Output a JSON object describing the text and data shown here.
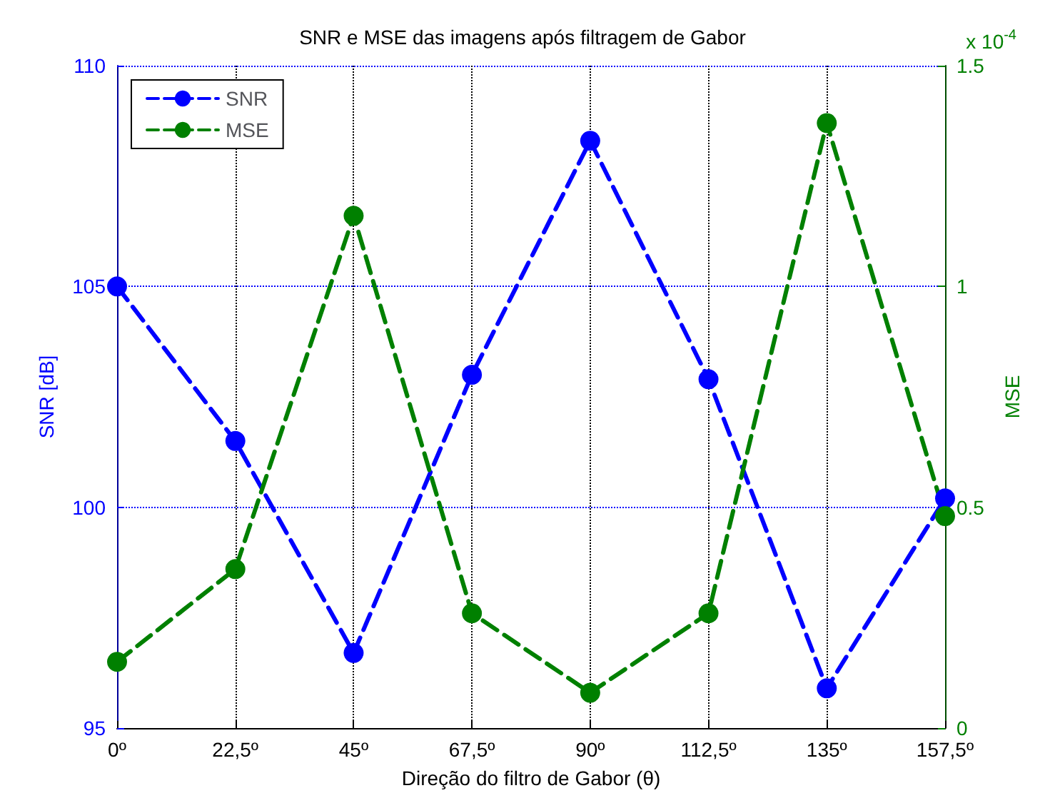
{
  "chart_data": {
    "type": "line",
    "title": "SNR e MSE das imagens após filtragem de Gabor",
    "xlabel": "Direção do filtro de Gabor (θ)",
    "ylabel": "SNR [dB]",
    "y2label": "MSE",
    "categories": [
      "0º",
      "22,5º",
      "45º",
      "67,5º",
      "90º",
      "112,5º",
      "135º",
      "157,5º"
    ],
    "series": [
      {
        "name": "SNR",
        "color": "#0000ff",
        "values": [
          105,
          101.5,
          96.7,
          103,
          108.3,
          102.9,
          95.9,
          100.2
        ]
      },
      {
        "name": "MSE",
        "color": "#008000",
        "axis": "y2",
        "values": [
          0.15,
          0.36,
          1.16,
          0.26,
          0.08,
          0.26,
          1.37,
          0.48
        ]
      }
    ],
    "ylim": [
      95,
      110
    ],
    "yticks": [
      95,
      100,
      105,
      110
    ],
    "y2lim": [
      0,
      1.5
    ],
    "y2ticks": [
      0,
      0.5,
      1,
      1.5
    ],
    "annotations": [
      "x 10$^{-4}$"
    ],
    "grid": true,
    "legend": "top left",
    "marker": "circle",
    "line_style": "dashed"
  }
}
